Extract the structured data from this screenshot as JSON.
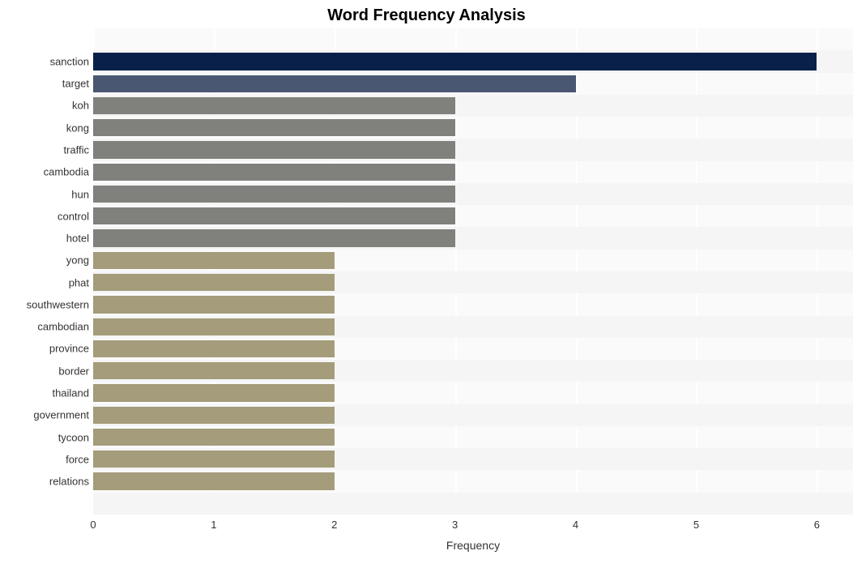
{
  "chart": {
    "type": "bar-horizontal",
    "title": "Word Frequency Analysis",
    "title_fontsize": 20,
    "title_fontweight": "bold",
    "xlabel": "Frequency",
    "xlabel_fontsize": 14,
    "ylabel_fontsize": 13,
    "tick_fontsize": 13,
    "background_color": "#ffffff",
    "plot_bg_color": "#fafafa",
    "plot_band_color": "#f5f5f5",
    "grid_color": "#ffffff",
    "xlim": [
      0,
      6.3
    ],
    "xticks": [
      0,
      1,
      2,
      3,
      4,
      5,
      6
    ],
    "bar_height_ratio": 0.78,
    "categories": [
      {
        "label": "sanction",
        "value": 6,
        "color": "#08204a"
      },
      {
        "label": "target",
        "value": 4,
        "color": "#4a5772"
      },
      {
        "label": "koh",
        "value": 3,
        "color": "#80807c"
      },
      {
        "label": "kong",
        "value": 3,
        "color": "#80807c"
      },
      {
        "label": "traffic",
        "value": 3,
        "color": "#80807c"
      },
      {
        "label": "cambodia",
        "value": 3,
        "color": "#80807c"
      },
      {
        "label": "hun",
        "value": 3,
        "color": "#80807c"
      },
      {
        "label": "control",
        "value": 3,
        "color": "#80807c"
      },
      {
        "label": "hotel",
        "value": 3,
        "color": "#80807c"
      },
      {
        "label": "yong",
        "value": 2,
        "color": "#a49c7a"
      },
      {
        "label": "phat",
        "value": 2,
        "color": "#a49c7a"
      },
      {
        "label": "southwestern",
        "value": 2,
        "color": "#a49c7a"
      },
      {
        "label": "cambodian",
        "value": 2,
        "color": "#a49c7a"
      },
      {
        "label": "province",
        "value": 2,
        "color": "#a49c7a"
      },
      {
        "label": "border",
        "value": 2,
        "color": "#a49c7a"
      },
      {
        "label": "thailand",
        "value": 2,
        "color": "#a49c7a"
      },
      {
        "label": "government",
        "value": 2,
        "color": "#a49c7a"
      },
      {
        "label": "tycoon",
        "value": 2,
        "color": "#a49c7a"
      },
      {
        "label": "force",
        "value": 2,
        "color": "#a49c7a"
      },
      {
        "label": "relations",
        "value": 2,
        "color": "#a49c7a"
      }
    ]
  }
}
